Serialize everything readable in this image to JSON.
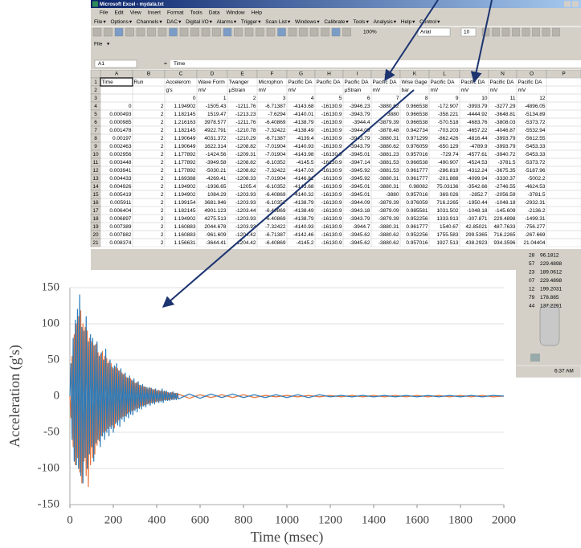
{
  "window": {
    "title": "Microsoft Excel - mydata.txt",
    "menu": [
      "File",
      "Edit",
      "View",
      "Insert",
      "Format",
      "Tools",
      "Data",
      "Window",
      "Help"
    ],
    "daq_menu": [
      "File",
      "Options",
      "Channels",
      "DAC",
      "Digital I/O",
      "Alarms",
      "Trigger",
      "Scan List",
      "Windows",
      "Calibrate",
      "Tools",
      "Analysis",
      "Help",
      "Control"
    ],
    "zoom": "100%",
    "font": "Arial",
    "font_size": "10",
    "file_menu": "File"
  },
  "formula_bar": {
    "cell": "A1",
    "formula": "Time"
  },
  "sheet": {
    "columns": [
      "A",
      "B",
      "C",
      "D",
      "E",
      "F",
      "G",
      "H",
      "I",
      "J",
      "K",
      "L",
      "M",
      "N",
      "O",
      "P"
    ],
    "row_headers": [
      1,
      2,
      3,
      4,
      5,
      6,
      7,
      8,
      9,
      10,
      11,
      12,
      13,
      14,
      15,
      16,
      17,
      18,
      19,
      20,
      21
    ],
    "rows": [
      [
        "Time",
        "Run",
        "Accelerom",
        "Wave Form",
        "Twanger",
        "Microphon",
        "Pacific DA",
        "Pacific DA",
        "Pacific DA",
        "Pacific DA",
        "Wise Gage",
        "Pacific DA",
        "Pacific DA",
        "Pacific DA",
        "Pacific DA"
      ],
      [
        null,
        null,
        "g's",
        "mV",
        "µStrain",
        "mV",
        "mV",
        null,
        "µStrain",
        "mV",
        "bar",
        "mV",
        "mV",
        "mV",
        "mV"
      ],
      [
        null,
        null,
        0,
        1,
        2,
        3,
        4,
        5,
        6,
        7,
        8,
        9,
        10,
        11,
        12
      ],
      [
        0,
        2,
        1.194902,
        -1505.43,
        -1211.76,
        -6.71387,
        -4143.68,
        -16130.9,
        -3946.23,
        -3880.62,
        0.966538,
        -172.907,
        -3993.79,
        -3277.29,
        -4896.05
      ],
      [
        0.000493,
        2,
        1.182145,
        1519.47,
        -1213.23,
        -7.6294,
        -4140.01,
        -16130.9,
        -3943.79,
        -3880,
        0.966538,
        -358.221,
        -4444.92,
        -3648.81,
        -5134.89
      ],
      [
        0.000985,
        2,
        1.216163,
        3978.577,
        -1211.76,
        -6.40869,
        -4138.79,
        -16130.9,
        -3944.4,
        -3879.39,
        0.966538,
        -570.518,
        -4683.76,
        -3808.03,
        -5373.72
      ],
      [
        0.001478,
        2,
        1.182145,
        4922.791,
        -1210.78,
        -7.32422,
        -4138.49,
        -16130.9,
        -3944.09,
        -3878.48,
        0.942734,
        -703.203,
        -4657.22,
        -4046.87,
        -5532.94
      ],
      [
        0.00197,
        2,
        1.190649,
        4031.372,
        -1210.29,
        -6.71387,
        -4139.4,
        -16130.9,
        -3943.79,
        -3880.31,
        0.971299,
        -862.426,
        -4816.44,
        -3993.79,
        -5612.55
      ],
      [
        0.002463,
        2,
        1.190649,
        1622.314,
        -1208.82,
        -7.01904,
        -4140.93,
        -16130.9,
        -3943.79,
        -3880.62,
        0.976059,
        -650.129,
        -4789.9,
        -3993.79,
        -5453.33
      ],
      [
        0.002956,
        2,
        1.177892,
        -1424.56,
        -1209.31,
        -7.01904,
        -4143.98,
        -16130.9,
        -3945.01,
        -3881.23,
        0.957016,
        -729.74,
        -4577.61,
        -3940.72,
        -5453.33
      ],
      [
        0.003448,
        2,
        1.177892,
        -3949.58,
        -1208.82,
        -6.10352,
        -4145.5,
        -16130.9,
        -3947.14,
        -3881.53,
        0.966538,
        -490.907,
        -4524.53,
        -3781.5,
        -5373.72
      ],
      [
        0.003941,
        2,
        1.177892,
        -5030.21,
        -1208.82,
        -7.32422,
        -4147.03,
        -16130.9,
        -3945.92,
        -3881.53,
        0.961777,
        -286.819,
        -4312.24,
        -3675.35,
        -5187.96
      ],
      [
        0.004433,
        2,
        1.169388,
        -4269.41,
        -1208.33,
        -7.01904,
        -4146.81,
        -16130.9,
        -3945.92,
        -3880.31,
        0.961777,
        -201.888,
        -4099.94,
        -3330.37,
        -5002.2
      ],
      [
        0.004926,
        2,
        1.194902,
        -1936.65,
        -1205.4,
        -6.10352,
        -4143.68,
        -16130.9,
        -3945.01,
        -3880.31,
        0.98082,
        75.03136,
        -3542.66,
        -2746.55,
        -4624.53
      ],
      [
        0.005419,
        2,
        1.194902,
        1084.29,
        -1203.93,
        -6.40869,
        -4140.32,
        -16130.9,
        -3945.01,
        -3880,
        0.957016,
        369.026,
        -2852.7,
        -2056.59,
        -3781.5
      ],
      [
        0.005911,
        2,
        1.199154,
        3681.946,
        -1203.93,
        -6.10352,
        -4138.79,
        -16130.9,
        -3944.09,
        -3879.39,
        0.976059,
        716.2265,
        -1950.44,
        -1048.18,
        -2932.31
      ],
      [
        0.006404,
        2,
        1.182145,
        4901.123,
        -1203.44,
        -6.40869,
        -4138.49,
        -16130.9,
        -3943.18,
        -3879.09,
        0.985581,
        1031.502,
        -1048.18,
        -145.609,
        -2136.2
      ],
      [
        0.006897,
        2,
        1.194902,
        4275.513,
        -1203.93,
        -6.40869,
        -4138.79,
        -16130.9,
        -3943.79,
        -3879.39,
        0.952256,
        1333.913,
        -307.871,
        229.4898,
        -1499.31
      ],
      [
        0.007389,
        2,
        1.160883,
        2044.678,
        -1203.93,
        -7.32422,
        -4140.93,
        -16130.9,
        -3944.7,
        -3880.31,
        0.961777,
        1540.67,
        42.85021,
        487.7633,
        -756.277
      ],
      [
        0.007882,
        2,
        1.160883,
        -961.609,
        -1204.42,
        -6.71387,
        -4142.46,
        -16130.9,
        -3945.62,
        -3880.62,
        0.952256,
        1755.583,
        299.5365,
        716.2265,
        -267.669
      ],
      [
        0.008374,
        2,
        1.156631,
        -3644.41,
        -1204.42,
        -6.40869,
        -4145.2,
        -16130.9,
        -3945.62,
        -3880.62,
        0.957016,
        1927.513,
        438.2923,
        934.3596,
        21.04404
      ]
    ]
  },
  "side_cells": [
    [
      "28",
      "96.1812"
    ],
    [
      "57",
      "229.4898"
    ],
    [
      "23",
      "189.0612"
    ],
    [
      "07",
      "229.4898"
    ],
    [
      "12",
      "199.2031"
    ],
    [
      "79",
      "178.885"
    ],
    [
      "44",
      "137.2291"
    ]
  ],
  "clock": "6:37 AM",
  "chart_data": {
    "type": "line",
    "xlabel": "Time (msec)",
    "ylabel": "Acceleration (g's)",
    "xlim": [
      0,
      2000
    ],
    "ylim": [
      -150,
      150
    ],
    "xticks": [
      0,
      200,
      400,
      600,
      800,
      1000,
      1200,
      1400,
      1600,
      1800,
      2000
    ],
    "yticks": [
      -150,
      -100,
      -50,
      0,
      50,
      100,
      150
    ],
    "grid": true,
    "x": [
      0,
      5,
      10,
      15,
      20,
      25,
      30,
      35,
      40,
      45,
      50,
      55,
      60,
      65,
      70,
      75,
      80,
      85,
      90,
      95,
      100,
      105,
      110,
      115,
      120,
      125,
      130,
      135,
      140,
      145,
      150,
      155,
      160,
      165,
      170,
      175,
      180,
      185,
      190,
      195,
      200,
      205,
      210,
      215,
      220,
      225,
      230,
      235,
      240,
      245,
      250,
      255,
      260,
      265,
      270,
      275,
      280,
      285,
      290,
      295,
      300,
      305,
      310,
      315,
      320,
      325,
      330,
      335,
      340,
      345,
      350,
      355,
      360,
      365,
      370,
      375,
      380,
      385,
      390,
      395,
      400,
      405,
      410,
      415,
      420,
      425,
      430,
      435,
      440,
      445,
      450,
      455,
      460,
      465,
      470,
      475,
      480,
      485,
      490,
      495,
      500,
      550,
      600,
      650,
      700,
      750,
      800,
      850,
      900,
      950,
      1000,
      1050,
      1100,
      1150,
      1200,
      1250,
      1300,
      1350,
      1400,
      1450,
      1500,
      1550,
      1600,
      1650,
      1700,
      1750,
      1800,
      1850,
      1900,
      1950,
      2000
    ],
    "series": [
      {
        "color": "#e8743b",
        "values": [
          0,
          -30,
          55,
          -70,
          85,
          -95,
          100,
          -85,
          110,
          -105,
          118,
          -120,
          100,
          -90,
          95,
          -110,
          90,
          -125,
          80,
          -95,
          75,
          -85,
          70,
          -80,
          72,
          -68,
          60,
          -62,
          58,
          -55,
          62,
          -50,
          55,
          -48,
          52,
          -45,
          48,
          -42,
          45,
          -40,
          38,
          -44,
          40,
          -36,
          38,
          -33,
          35,
          -30,
          32,
          -28,
          30,
          -27,
          26,
          -24,
          25,
          -22,
          24,
          -20,
          21,
          -19,
          18,
          -17,
          19,
          -16,
          15,
          -14,
          14,
          -13,
          13,
          -12,
          12,
          -11,
          10,
          -10,
          11,
          -9,
          9,
          -8,
          9,
          -8,
          7,
          -7,
          8,
          -6,
          7,
          -6,
          6,
          -5,
          6,
          -5,
          5,
          -5,
          4,
          -4,
          5,
          -4,
          4,
          -3,
          4,
          -3,
          3,
          -3,
          2,
          -2,
          2,
          -2,
          2,
          -2,
          1,
          -1,
          1,
          -1,
          1,
          -1,
          1,
          -1,
          1,
          -1,
          1,
          -1,
          1,
          -1,
          1,
          -1,
          1,
          -1,
          1,
          -1,
          1,
          -1,
          0
        ]
      },
      {
        "color": "#2b7bb9",
        "values": [
          0,
          45,
          -60,
          80,
          -90,
          105,
          -95,
          120,
          -100,
          140,
          -110,
          95,
          -120,
          90,
          -85,
          110,
          -100,
          75,
          -80,
          85,
          -70,
          80,
          -90,
          70,
          -65,
          75,
          -60,
          55,
          -70,
          60,
          -55,
          50,
          -60,
          65,
          -50,
          45,
          -55,
          50,
          -45,
          40,
          -50,
          42,
          -38,
          45,
          -40,
          35,
          -42,
          38,
          -32,
          30,
          -35,
          32,
          -28,
          25,
          -30,
          28,
          -25,
          22,
          -26,
          24,
          -20,
          18,
          -22,
          20,
          -17,
          15,
          -18,
          16,
          -14,
          13,
          -15,
          12,
          -11,
          12,
          -13,
          11,
          -10,
          9,
          -11,
          10,
          -8,
          8,
          -9,
          7,
          -8,
          10,
          -9,
          7,
          -6,
          7,
          -6,
          5,
          -6,
          5,
          -5,
          6,
          -5,
          4,
          -5,
          4,
          -4,
          3,
          -3,
          3,
          -2,
          3,
          -2,
          2,
          -2,
          2,
          -2,
          2,
          -2,
          2,
          -1,
          1,
          -1,
          1,
          -1,
          1,
          -1,
          1,
          -1,
          1,
          -1,
          1,
          -1,
          1,
          -1,
          1,
          0
        ]
      }
    ]
  }
}
